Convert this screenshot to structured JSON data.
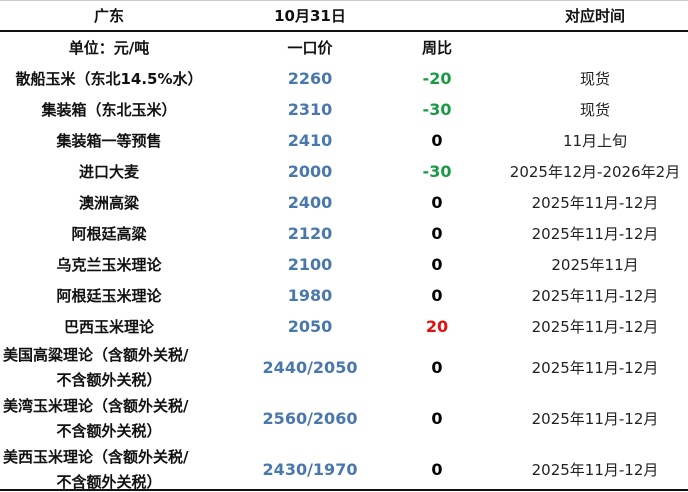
{
  "header": {
    "region": "广东",
    "date": "10月31日",
    "period": "对应时间",
    "unit": "单位：元/吨",
    "price": "一口价",
    "weekly": "周比"
  },
  "colors": {
    "price": "#4a78ad",
    "down": "#1a9a45",
    "up": "#e01010"
  },
  "rows": [
    {
      "name": "散船玉米（东北14.5%水）",
      "price": "2260",
      "change": "-20",
      "dir": "down",
      "time": "现货"
    },
    {
      "name": "集装箱（东北玉米）",
      "price": "2310",
      "change": "-30",
      "dir": "down",
      "time": "现货"
    },
    {
      "name": "集装箱一等预售",
      "price": "2410",
      "change": "0",
      "dir": "flat",
      "time": "11月上旬"
    },
    {
      "name": "进口大麦",
      "price": "2000",
      "change": "-30",
      "dir": "down",
      "time": "2025年12月-2026年2月"
    },
    {
      "name": "澳洲高粱",
      "price": "2400",
      "change": "0",
      "dir": "flat",
      "time": "2025年11月-12月"
    },
    {
      "name": "阿根廷高粱",
      "price": "2120",
      "change": "0",
      "dir": "flat",
      "time": "2025年11月-12月"
    },
    {
      "name": "乌克兰玉米理论",
      "price": "2100",
      "change": "0",
      "dir": "flat",
      "time": "2025年11月"
    },
    {
      "name": "阿根廷玉米理论",
      "price": "1980",
      "change": "0",
      "dir": "flat",
      "time": "2025年11月-12月"
    },
    {
      "name": "巴西玉米理论",
      "price": "2050",
      "change": "20",
      "dir": "up",
      "time": "2025年11月-12月"
    }
  ],
  "tall_rows": [
    {
      "name_line1": "美国高粱理论（含额外关税/",
      "name_line2": "不含额外关税）",
      "price": "2440/2050",
      "change": "0",
      "time": "2025年11月-12月"
    },
    {
      "name_line1": "美湾玉米理论（含额外关税/",
      "name_line2": "不含额外关税）",
      "price": "2560/2060",
      "change": "0",
      "time": "2025年11月-12月"
    },
    {
      "name_line1": "美西玉米理论（含额外关税/",
      "name_line2": "不含额外关税）",
      "price": "2430/1970",
      "change": "0",
      "time": "2025年11月-12月"
    }
  ]
}
